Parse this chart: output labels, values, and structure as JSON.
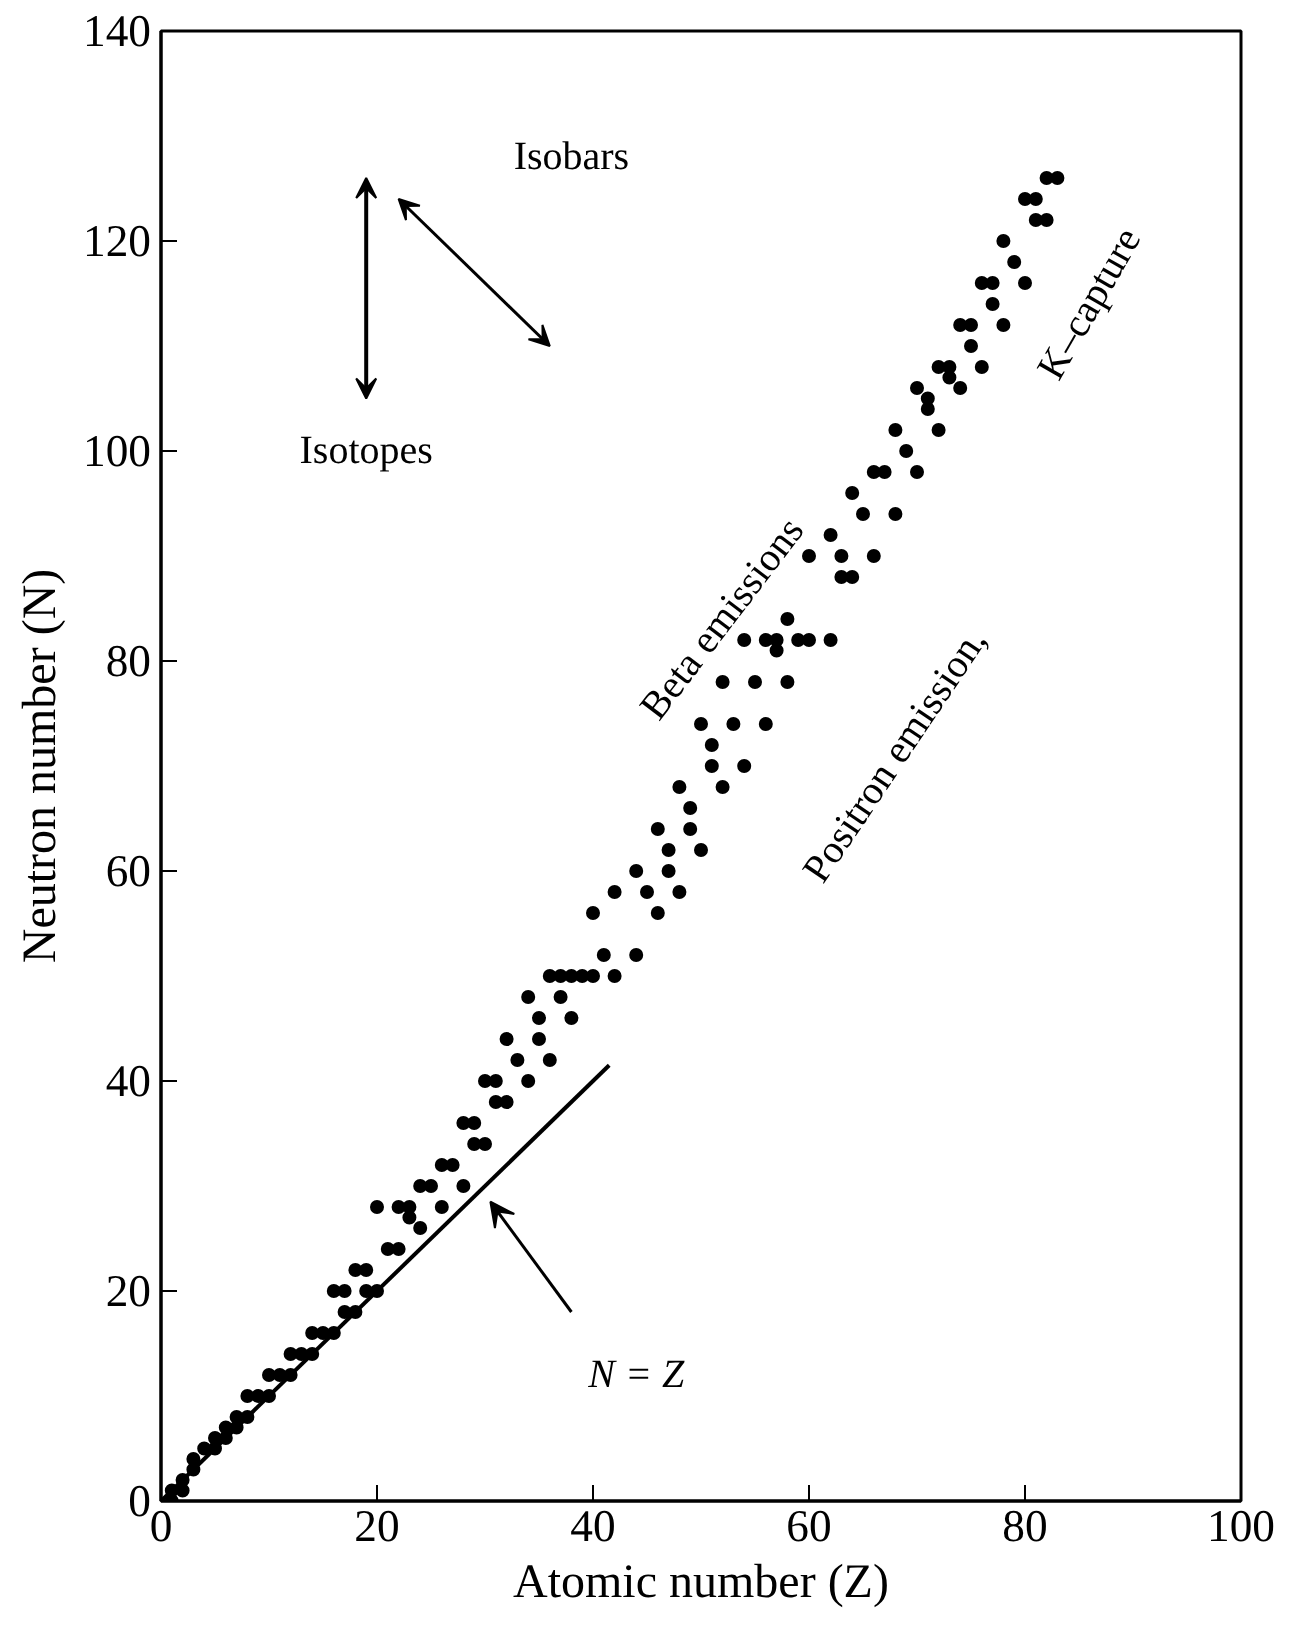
{
  "chart_data": {
    "type": "scatter",
    "xlabel": "Atomic number (Z)",
    "ylabel": "Neutron number (N)",
    "xlim": [
      0,
      100
    ],
    "ylim": [
      0,
      140
    ],
    "xticks": [
      0,
      20,
      40,
      60,
      80,
      100
    ],
    "yticks": [
      0,
      20,
      40,
      60,
      80,
      100,
      120,
      140
    ],
    "grid": false,
    "series": [
      {
        "color": "#000000",
        "marker": "circle",
        "x": [
          1,
          1,
          2,
          2,
          3,
          3,
          4,
          5,
          5,
          6,
          6,
          7,
          7,
          8,
          8,
          9,
          10,
          10,
          11,
          12,
          12,
          13,
          14,
          14,
          15,
          16,
          16,
          17,
          17,
          18,
          18,
          19,
          19,
          20,
          20,
          21,
          22,
          22,
          23,
          23,
          24,
          24,
          25,
          26,
          26,
          27,
          28,
          28,
          29,
          29,
          30,
          30,
          31,
          31,
          32,
          32,
          33,
          34,
          34,
          35,
          35,
          36,
          36,
          37,
          37,
          38,
          38,
          39,
          40,
          40,
          41,
          42,
          42,
          44,
          44,
          45,
          46,
          46,
          47,
          47,
          48,
          48,
          49,
          49,
          50,
          50,
          51,
          51,
          52,
          52,
          53,
          54,
          54,
          55,
          56,
          56,
          57,
          57,
          58,
          58,
          59,
          60,
          60,
          62,
          62,
          63,
          63,
          64,
          64,
          65,
          66,
          66,
          67,
          68,
          68,
          69,
          70,
          70,
          71,
          71,
          72,
          72,
          73,
          73,
          74,
          74,
          75,
          75,
          76,
          76,
          77,
          77,
          78,
          78,
          79,
          80,
          80,
          81,
          81,
          82,
          82,
          83
        ],
        "values": [
          0,
          1,
          1,
          2,
          3,
          4,
          5,
          5,
          6,
          6,
          7,
          7,
          8,
          8,
          10,
          10,
          10,
          12,
          12,
          12,
          14,
          14,
          14,
          16,
          16,
          16,
          20,
          18,
          20,
          18,
          22,
          20,
          22,
          20,
          28,
          24,
          24,
          28,
          27,
          28,
          26,
          30,
          30,
          28,
          32,
          32,
          30,
          36,
          34,
          36,
          34,
          40,
          38,
          40,
          38,
          44,
          42,
          40,
          48,
          44,
          46,
          42,
          50,
          48,
          50,
          46,
          50,
          50,
          50,
          56,
          52,
          50,
          58,
          52,
          60,
          58,
          56,
          64,
          60,
          62,
          58,
          68,
          64,
          66,
          62,
          74,
          70,
          72,
          68,
          78,
          74,
          70,
          82,
          78,
          74,
          82,
          81,
          82,
          78,
          84,
          82,
          82,
          90,
          82,
          92,
          88,
          90,
          88,
          96,
          94,
          90,
          98,
          98,
          94,
          102,
          100,
          98,
          106,
          104,
          105,
          102,
          108,
          107,
          108,
          106,
          112,
          110,
          112,
          108,
          116,
          114,
          116,
          112,
          120,
          118,
          116,
          124,
          122,
          124,
          122,
          126,
          126
        ]
      },
      {
        "type": "line",
        "color": "#000000",
        "x": [
          0,
          41.5
        ],
        "values": [
          0,
          41.5
        ]
      }
    ],
    "annotations": [
      "N = Z",
      "Isobars",
      "Isotopes",
      "Beta emissions",
      "Positron emission,",
      "K–capture"
    ]
  }
}
